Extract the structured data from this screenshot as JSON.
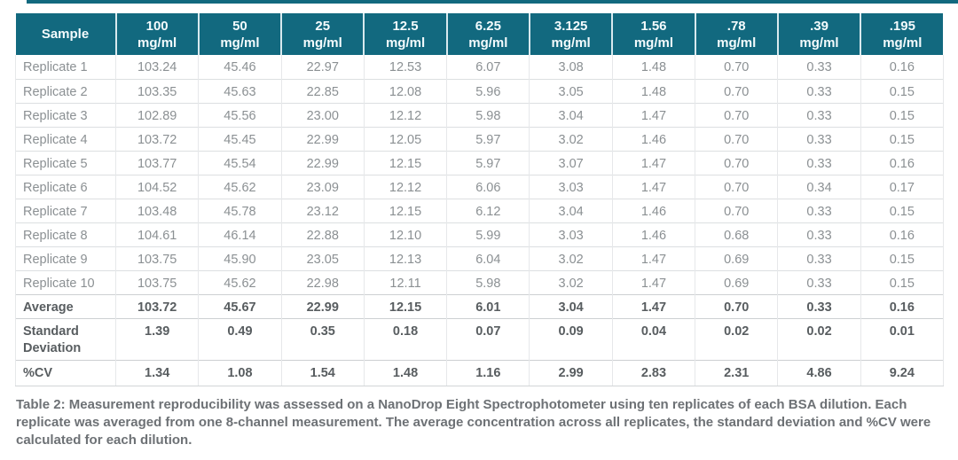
{
  "colors": {
    "header_bg": "#12697f",
    "header_text": "#f4fbfd",
    "accent_bar": "#12697f",
    "row_text": "#8b9093",
    "bold_text": "#585d60",
    "border_light": "#dcdfe1",
    "caption_text": "#6d7175"
  },
  "table": {
    "header": {
      "sample_label": "Sample",
      "columns": [
        {
          "line1": "100",
          "line2": "mg/ml"
        },
        {
          "line1": "50",
          "line2": "mg/ml"
        },
        {
          "line1": "25",
          "line2": "mg/ml"
        },
        {
          "line1": "12.5",
          "line2": "mg/ml"
        },
        {
          "line1": "6.25",
          "line2": "mg/ml"
        },
        {
          "line1": "3.125",
          "line2": "mg/ml"
        },
        {
          "line1": "1.56",
          "line2": "mg/ml"
        },
        {
          "line1": ".78",
          "line2": "mg/ml"
        },
        {
          "line1": ".39",
          "line2": "mg/ml"
        },
        {
          "line1": ".195",
          "line2": "mg/ml"
        }
      ]
    },
    "rows": [
      {
        "label": "Replicate 1",
        "bold": false,
        "values": [
          "103.24",
          "45.46",
          "22.97",
          "12.53",
          "6.07",
          "3.08",
          "1.48",
          "0.70",
          "0.33",
          "0.16"
        ]
      },
      {
        "label": "Replicate 2",
        "bold": false,
        "values": [
          "103.35",
          "45.63",
          "22.85",
          "12.08",
          "5.96",
          "3.05",
          "1.48",
          "0.70",
          "0.33",
          "0.15"
        ]
      },
      {
        "label": "Replicate 3",
        "bold": false,
        "values": [
          "102.89",
          "45.56",
          "23.00",
          "12.12",
          "5.98",
          "3.04",
          "1.47",
          "0.70",
          "0.33",
          "0.15"
        ]
      },
      {
        "label": "Replicate 4",
        "bold": false,
        "values": [
          "103.72",
          "45.45",
          "22.99",
          "12.05",
          "5.97",
          "3.02",
          "1.46",
          "0.70",
          "0.33",
          "0.15"
        ]
      },
      {
        "label": "Replicate 5",
        "bold": false,
        "values": [
          "103.77",
          "45.54",
          "22.99",
          "12.15",
          "5.97",
          "3.07",
          "1.47",
          "0.70",
          "0.33",
          "0.16"
        ]
      },
      {
        "label": "Replicate 6",
        "bold": false,
        "values": [
          "104.52",
          "45.62",
          "23.09",
          "12.12",
          "6.06",
          "3.03",
          "1.47",
          "0.70",
          "0.34",
          "0.17"
        ]
      },
      {
        "label": "Replicate 7",
        "bold": false,
        "values": [
          "103.48",
          "45.78",
          "23.12",
          "12.15",
          "6.12",
          "3.04",
          "1.46",
          "0.70",
          "0.33",
          "0.15"
        ]
      },
      {
        "label": "Replicate 8",
        "bold": false,
        "values": [
          "104.61",
          "46.14",
          "22.88",
          "12.10",
          "5.99",
          "3.03",
          "1.46",
          "0.68",
          "0.33",
          "0.16"
        ]
      },
      {
        "label": "Replicate 9",
        "bold": false,
        "values": [
          "103.75",
          "45.90",
          "23.05",
          "12.13",
          "6.04",
          "3.02",
          "1.47",
          "0.69",
          "0.33",
          "0.15"
        ]
      },
      {
        "label": "Replicate 10",
        "bold": false,
        "values": [
          "103.75",
          "45.62",
          "22.98",
          "12.11",
          "5.98",
          "3.02",
          "1.47",
          "0.69",
          "0.33",
          "0.15"
        ]
      },
      {
        "label": "Average",
        "bold": true,
        "values": [
          "103.72",
          "45.67",
          "22.99",
          "12.15",
          "6.01",
          "3.04",
          "1.47",
          "0.70",
          "0.33",
          "0.16"
        ]
      },
      {
        "label": "Standard Deviation",
        "bold": true,
        "values": [
          "1.39",
          "0.49",
          "0.35",
          "0.18",
          "0.07",
          "0.09",
          "0.04",
          "0.02",
          "0.02",
          "0.01"
        ]
      },
      {
        "label": "%CV",
        "bold": true,
        "values": [
          "1.34",
          "1.08",
          "1.54",
          "1.48",
          "1.16",
          "2.99",
          "2.83",
          "2.31",
          "4.86",
          "9.24"
        ]
      }
    ]
  },
  "caption": "Table 2: Measurement reproducibility was assessed on a NanoDrop Eight Spectrophotometer using ten replicates of each BSA dilution. Each replicate was averaged from one 8-channel measurement. The average concentration across all replicates, the standard deviation and %CV were calculated for each dilution."
}
